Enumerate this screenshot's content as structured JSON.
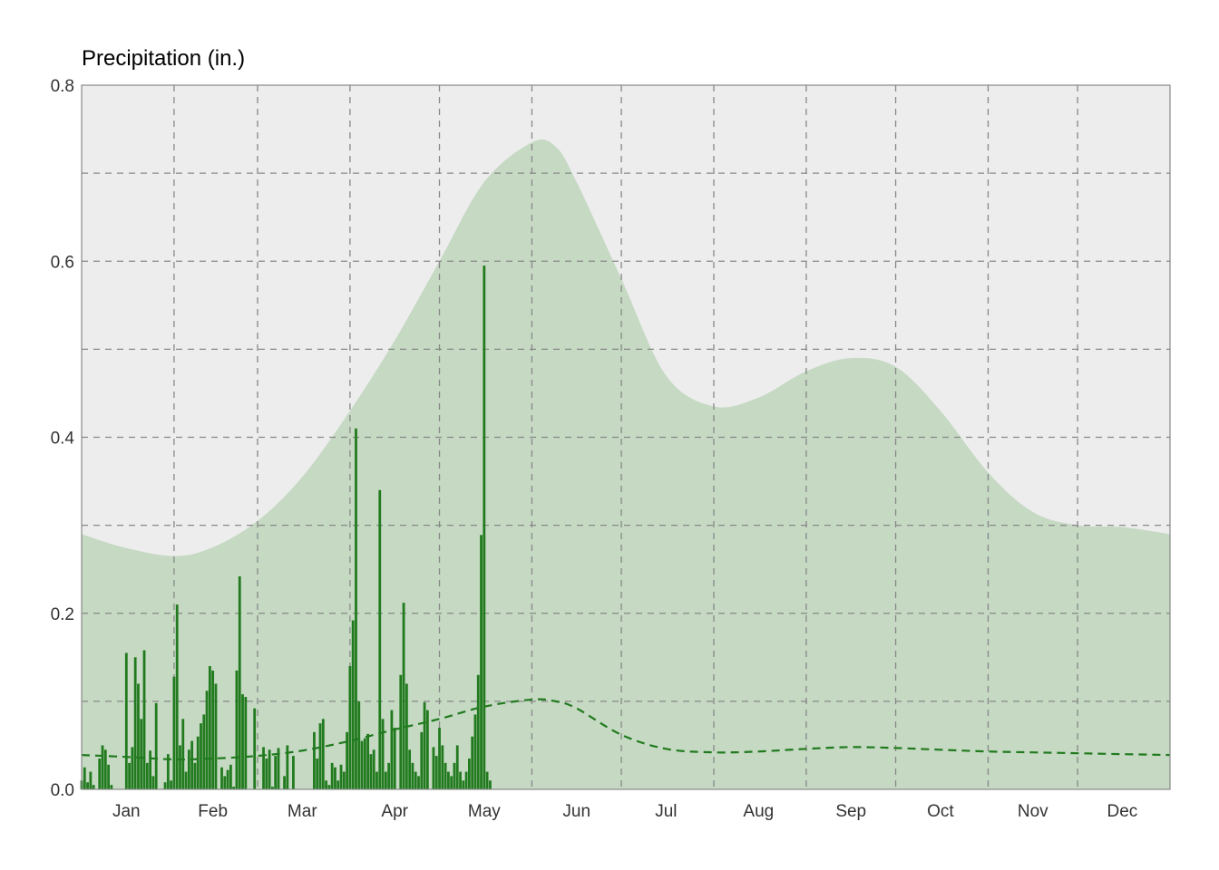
{
  "chart_data": {
    "type": "bar",
    "ylabel": "Precipitation (in.)",
    "ylim": [
      0,
      0.8
    ],
    "yticks": [
      "0.0",
      "0.2",
      "0.4",
      "0.6",
      "0.8"
    ],
    "xlim_day": [
      1,
      366
    ],
    "month_labels": [
      "Jan",
      "Feb",
      "Mar",
      "Apr",
      "May",
      "Jun",
      "Jul",
      "Aug",
      "Sep",
      "Oct",
      "Nov",
      "Dec"
    ],
    "month_label_day": [
      16,
      45,
      75,
      106,
      136,
      167,
      197,
      228,
      259,
      289,
      320,
      350
    ],
    "month_start_day": [
      1,
      32,
      60,
      91,
      121,
      152,
      182,
      213,
      244,
      274,
      305,
      335
    ],
    "grid": true,
    "colors": {
      "background": "#ededed",
      "band": "#c5d9c3",
      "bar": "#217a1e",
      "normal_line": "#217a1e",
      "grid": "#888888"
    },
    "upper_band": {
      "day": [
        1,
        15,
        32,
        45,
        60,
        75,
        91,
        106,
        121,
        136,
        152,
        160,
        167,
        182,
        197,
        213,
        228,
        244,
        259,
        274,
        289,
        305,
        320,
        335,
        350,
        366
      ],
      "value": [
        0.29,
        0.275,
        0.265,
        0.275,
        0.305,
        0.355,
        0.43,
        0.51,
        0.6,
        0.69,
        0.735,
        0.73,
        0.69,
        0.58,
        0.47,
        0.435,
        0.445,
        0.475,
        0.49,
        0.48,
        0.43,
        0.36,
        0.315,
        0.3,
        0.298,
        0.29
      ]
    },
    "normal": {
      "day": [
        1,
        15,
        32,
        45,
        60,
        75,
        91,
        106,
        121,
        136,
        152,
        160,
        167,
        182,
        197,
        213,
        228,
        244,
        259,
        274,
        289,
        305,
        320,
        335,
        350,
        366
      ],
      "value": [
        0.039,
        0.037,
        0.034,
        0.035,
        0.038,
        0.044,
        0.055,
        0.068,
        0.08,
        0.094,
        0.102,
        0.1,
        0.092,
        0.062,
        0.046,
        0.042,
        0.043,
        0.046,
        0.048,
        0.047,
        0.045,
        0.043,
        0.042,
        0.041,
        0.04,
        0.039
      ]
    },
    "bars": {
      "day": [
        1,
        2,
        3,
        4,
        5,
        7,
        8,
        9,
        10,
        11,
        16,
        17,
        18,
        19,
        20,
        21,
        22,
        23,
        24,
        25,
        26,
        29,
        30,
        31,
        32,
        33,
        34,
        35,
        36,
        37,
        38,
        39,
        40,
        41,
        42,
        43,
        44,
        45,
        46,
        48,
        49,
        50,
        51,
        52,
        53,
        54,
        55,
        56,
        59,
        62,
        63,
        64,
        65,
        66,
        67,
        69,
        70,
        72,
        79,
        80,
        81,
        82,
        83,
        84,
        85,
        86,
        87,
        88,
        89,
        90,
        91,
        92,
        93,
        94,
        95,
        96,
        97,
        98,
        99,
        100,
        101,
        102,
        103,
        104,
        105,
        106,
        108,
        109,
        110,
        111,
        112,
        113,
        114,
        115,
        116,
        117,
        119,
        120,
        121,
        122,
        123,
        124,
        125,
        126,
        127,
        128,
        129,
        130,
        131,
        132,
        133,
        134,
        135,
        136,
        137,
        138
      ],
      "value": [
        0.01,
        0.025,
        0.008,
        0.02,
        0.005,
        0.035,
        0.05,
        0.045,
        0.028,
        0.005,
        0.155,
        0.03,
        0.048,
        0.15,
        0.12,
        0.08,
        0.158,
        0.03,
        0.044,
        0.015,
        0.098,
        0.008,
        0.04,
        0.01,
        0.128,
        0.21,
        0.05,
        0.08,
        0.02,
        0.045,
        0.055,
        0.03,
        0.06,
        0.075,
        0.085,
        0.112,
        0.14,
        0.135,
        0.12,
        0.025,
        0.015,
        0.022,
        0.028,
        0.003,
        0.135,
        0.242,
        0.108,
        0.105,
        0.092,
        0.048,
        0.035,
        0.045,
        0.003,
        0.038,
        0.047,
        0.015,
        0.05,
        0.038,
        0.065,
        0.035,
        0.075,
        0.08,
        0.01,
        0.005,
        0.03,
        0.025,
        0.01,
        0.028,
        0.02,
        0.065,
        0.14,
        0.192,
        0.41,
        0.1,
        0.055,
        0.058,
        0.063,
        0.04,
        0.045,
        0.02,
        0.34,
        0.08,
        0.02,
        0.03,
        0.09,
        0.07,
        0.13,
        0.212,
        0.12,
        0.045,
        0.03,
        0.02,
        0.015,
        0.065,
        0.099,
        0.09,
        0.048,
        0.038,
        0.07,
        0.05,
        0.03,
        0.02,
        0.015,
        0.03,
        0.05,
        0.02,
        0.01,
        0.02,
        0.035,
        0.06,
        0.085,
        0.13,
        0.289,
        0.595,
        0.02,
        0.01
      ]
    }
  }
}
